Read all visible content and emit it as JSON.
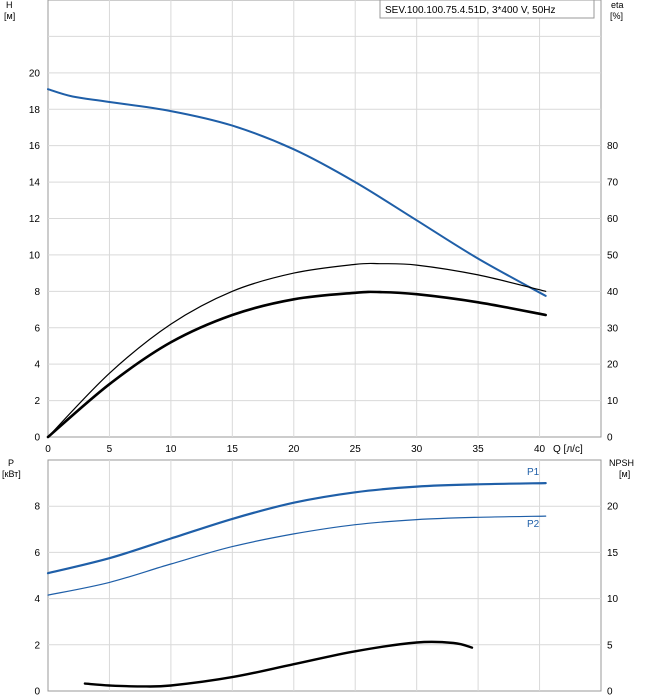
{
  "pump_model": "SEV.100.100.75.4.51D, 3*400 V, 50Hz",
  "chart_data": [
    {
      "type": "line",
      "panel": "top",
      "xlabel": "Q [л/с]",
      "xlim": [
        0,
        45
      ],
      "x_ticks": [
        0,
        5,
        10,
        15,
        20,
        25,
        30,
        35,
        40
      ],
      "y_left": {
        "label_line1": "H",
        "label_line2": "[м]",
        "lim": [
          0,
          24
        ],
        "ticks": [
          0,
          2,
          4,
          6,
          8,
          10,
          12,
          14,
          16,
          18,
          20
        ]
      },
      "y_right": {
        "label_line1": "eta",
        "label_line2": "[%]",
        "lim": [
          0,
          120
        ],
        "ticks": [
          0,
          10,
          20,
          30,
          40,
          50,
          60,
          70,
          80
        ]
      },
      "grid": true,
      "series": [
        {
          "key": "H",
          "axis": "left",
          "color": "#1f5fa8",
          "x": [
            0,
            2,
            5,
            10,
            15,
            20,
            25,
            30,
            35,
            40.5
          ],
          "y": [
            19.1,
            18.7,
            18.4,
            17.9,
            17.1,
            15.8,
            14.0,
            11.9,
            9.8,
            7.75
          ]
        },
        {
          "key": "eta_total",
          "axis": "right",
          "color": "#000000",
          "x": [
            0,
            5,
            10,
            15,
            20,
            25,
            27,
            30,
            35,
            40.5
          ],
          "y": [
            0,
            17.5,
            31,
            40,
            45,
            47.4,
            47.6,
            47.2,
            44.5,
            40
          ]
        },
        {
          "key": "eta_hydraulic",
          "axis": "right",
          "color": "#000000",
          "x": [
            0,
            5,
            10,
            15,
            20,
            25,
            27,
            30,
            35,
            40.5
          ],
          "y": [
            0,
            14.5,
            26,
            33.5,
            37.8,
            39.6,
            39.8,
            39.2,
            37,
            33.5
          ]
        }
      ]
    },
    {
      "type": "line",
      "panel": "bottom",
      "xlim": [
        0,
        45
      ],
      "x_ticks": [
        0,
        5,
        10,
        15,
        20,
        25,
        30,
        35,
        40
      ],
      "y_left": {
        "label_line1": "P",
        "label_line2": "[кВт]",
        "lim": [
          0,
          10
        ],
        "ticks": [
          0,
          2,
          4,
          6,
          8
        ]
      },
      "y_right": {
        "label_line1": "NPSH",
        "label_line2": "[м]",
        "lim": [
          0,
          25
        ],
        "ticks": [
          0,
          5,
          10,
          15,
          20
        ]
      },
      "grid": true,
      "series": [
        {
          "key": "P1",
          "name": "P1",
          "axis": "left",
          "color": "#1f5fa8",
          "x": [
            0,
            5,
            10,
            15,
            20,
            25,
            30,
            35,
            40.5
          ],
          "y": [
            5.1,
            5.75,
            6.6,
            7.45,
            8.15,
            8.6,
            8.85,
            8.95,
            9.0
          ]
        },
        {
          "key": "P2",
          "name": "P2",
          "axis": "left",
          "color": "#1f5fa8",
          "x": [
            0,
            5,
            10,
            15,
            20,
            25,
            30,
            35,
            40.5
          ],
          "y": [
            4.15,
            4.7,
            5.5,
            6.25,
            6.8,
            7.2,
            7.42,
            7.52,
            7.57
          ]
        },
        {
          "key": "NPSH",
          "axis": "right",
          "color": "#000000",
          "x": [
            3,
            5,
            7.5,
            10,
            15,
            20,
            25,
            30,
            33,
            34.5
          ],
          "y": [
            0.8,
            0.6,
            0.5,
            0.6,
            1.5,
            2.9,
            4.3,
            5.25,
            5.2,
            4.7
          ]
        }
      ]
    }
  ]
}
